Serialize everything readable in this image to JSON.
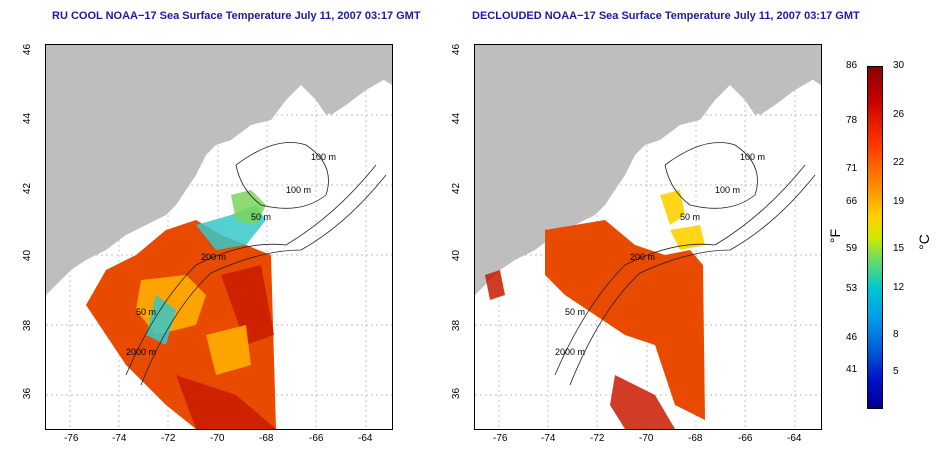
{
  "panels": [
    {
      "title": "RU COOL NOAA−17 Sea Surface Temperature July 11, 2007 03:17 GMT",
      "x_ticks": [
        "-76",
        "-74",
        "-72",
        "-70",
        "-68",
        "-66",
        "-64"
      ],
      "y_ticks": [
        "46",
        "44",
        "42",
        "40",
        "38",
        "36"
      ],
      "contour_labels": [
        "100 m",
        "100 m",
        "50 m",
        "200 m",
        "50 m",
        "2000 m"
      ]
    },
    {
      "title": "DECLOUDED NOAA−17 Sea Surface Temperature July 11, 2007 03:17 GMT",
      "x_ticks": [
        "-76",
        "-74",
        "-72",
        "-70",
        "-68",
        "-66",
        "-64"
      ],
      "y_ticks": [
        "46",
        "44",
        "42",
        "40",
        "38",
        "36"
      ],
      "contour_labels": [
        "100 m",
        "100 m",
        "50 m",
        "200 m",
        "50 m",
        "2000 m"
      ]
    }
  ],
  "colorbar": {
    "fahrenheit_ticks": [
      "86",
      "78",
      "71",
      "66",
      "59",
      "53",
      "46",
      "41"
    ],
    "celsius_ticks": [
      "30",
      "26",
      "22",
      "19",
      "15",
      "12",
      "8",
      "5"
    ],
    "unit_f": "°F",
    "unit_c": "°C"
  },
  "colors": {
    "land": "#bebebe",
    "warm": "#e84a00",
    "hot": "#c81a00",
    "mid": "#ffae00",
    "cool": "#36c8c8",
    "title": "#1a1aa6"
  }
}
